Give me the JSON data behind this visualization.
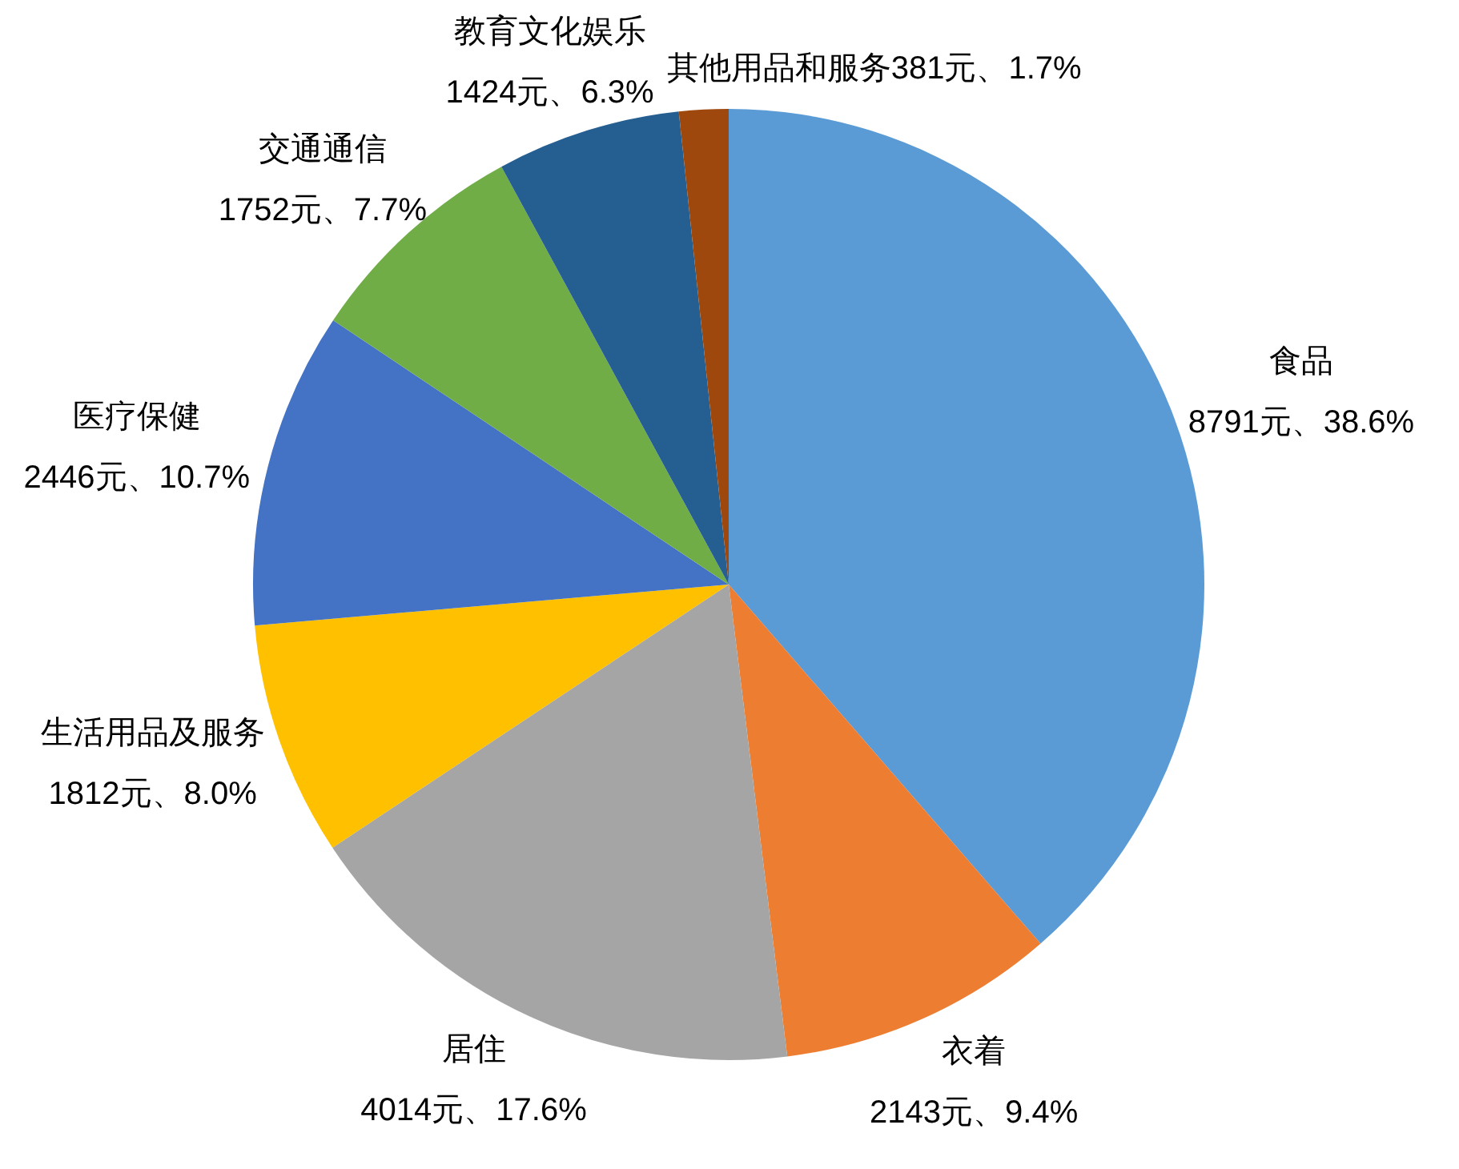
{
  "chart_data": {
    "type": "pie",
    "categories": [
      "食品",
      "衣着",
      "居住",
      "生活用品及服务",
      "医疗保健",
      "交通通信",
      "教育文化娱乐",
      "其他用品和服务"
    ],
    "values": [
      8791,
      2143,
      4014,
      1812,
      2446,
      1752,
      1424,
      381
    ],
    "colors": [
      "#5b9bd5",
      "#ed7d31",
      "#a5a5a5",
      "#ffc000",
      "#4472c4",
      "#70ad47",
      "#255e91",
      "#9e480e"
    ],
    "value_labels": [
      "8791元、38.6%",
      "2143元、9.4%",
      "4014元、17.6%",
      "1812元、8.0%",
      "2446元、10.7%",
      "1752元、7.7%",
      "1424元、6.3%",
      "381元、1.7%"
    ]
  }
}
